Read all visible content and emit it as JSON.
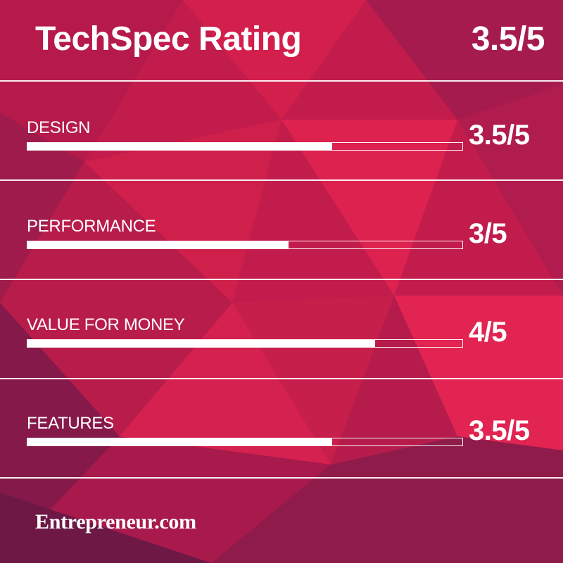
{
  "header": {
    "title": "TechSpec Rating",
    "overall_score": "3.5/5",
    "overall_value": 3.5,
    "max": 5
  },
  "categories": [
    {
      "label": "DESIGN",
      "score_text": "3.5/5",
      "value": 3.5,
      "max": 5
    },
    {
      "label": "PERFORMANCE",
      "score_text": "3/5",
      "value": 3,
      "max": 5
    },
    {
      "label": "VALUE FOR MONEY",
      "score_text": "4/5",
      "value": 4,
      "max": 5
    },
    {
      "label": "FEATURES",
      "score_text": "3.5/5",
      "value": 3.5,
      "max": 5
    }
  ],
  "footer": {
    "brand": "Entrepreneur.com"
  },
  "colors": {
    "background": "#c81d4a",
    "background_dark": "#7d1e49",
    "bar_fill": "#ffffff",
    "text": "#ffffff"
  }
}
